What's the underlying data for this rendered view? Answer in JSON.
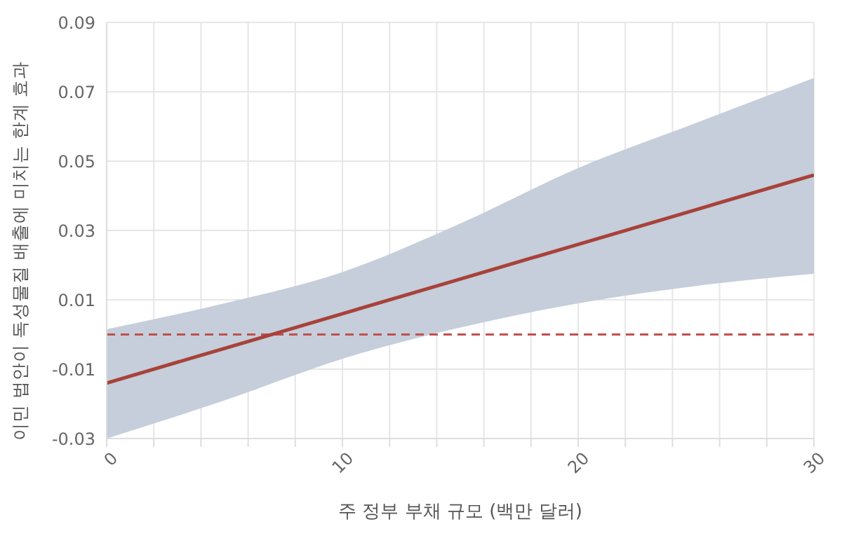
{
  "chart_data": {
    "type": "line",
    "xlabel": "주 정부 부채 규모 (백만 달러)",
    "ylabel": "이민 법안이 독성물질 배출에 미치는 한계 효과",
    "x": [
      0,
      5,
      10,
      15,
      20,
      25,
      30
    ],
    "series": [
      {
        "color": "#a8423a",
        "values": [
          -0.014,
          -0.004,
          0.006,
          0.016,
          0.026,
          0.036,
          0.046
        ],
        "lower": [
          -0.03,
          -0.019,
          -0.007,
          0.002,
          0.009,
          0.014,
          0.0175
        ],
        "upper": [
          0.0015,
          0.009,
          0.018,
          0.032,
          0.048,
          0.061,
          0.074
        ]
      }
    ],
    "xlim": [
      0,
      30
    ],
    "ylim": [
      -0.03,
      0.09
    ],
    "xticks": [
      0,
      {
        "value": 2,
        "label": null
      },
      {
        "value": 4,
        "label": null
      },
      {
        "value": 6,
        "label": null
      },
      {
        "value": 8,
        "label": null
      },
      10,
      {
        "value": 12,
        "label": null
      },
      {
        "value": 14,
        "label": null
      },
      {
        "value": 16,
        "label": null
      },
      {
        "value": 18,
        "label": null
      },
      20,
      {
        "value": 22,
        "label": null
      },
      {
        "value": 24,
        "label": null
      },
      {
        "value": 26,
        "label": null
      },
      {
        "value": 28,
        "label": null
      },
      30
    ],
    "yticks": [
      -0.03,
      -0.01,
      0.01,
      0.03,
      0.05,
      0.07,
      0.09
    ],
    "ref_lines": [
      {
        "axis": "y",
        "value": 0,
        "color": "#c0504d",
        "line_style": "dashed"
      }
    ],
    "grid": true,
    "legend": false,
    "marker": "none",
    "line_style": "solid"
  }
}
